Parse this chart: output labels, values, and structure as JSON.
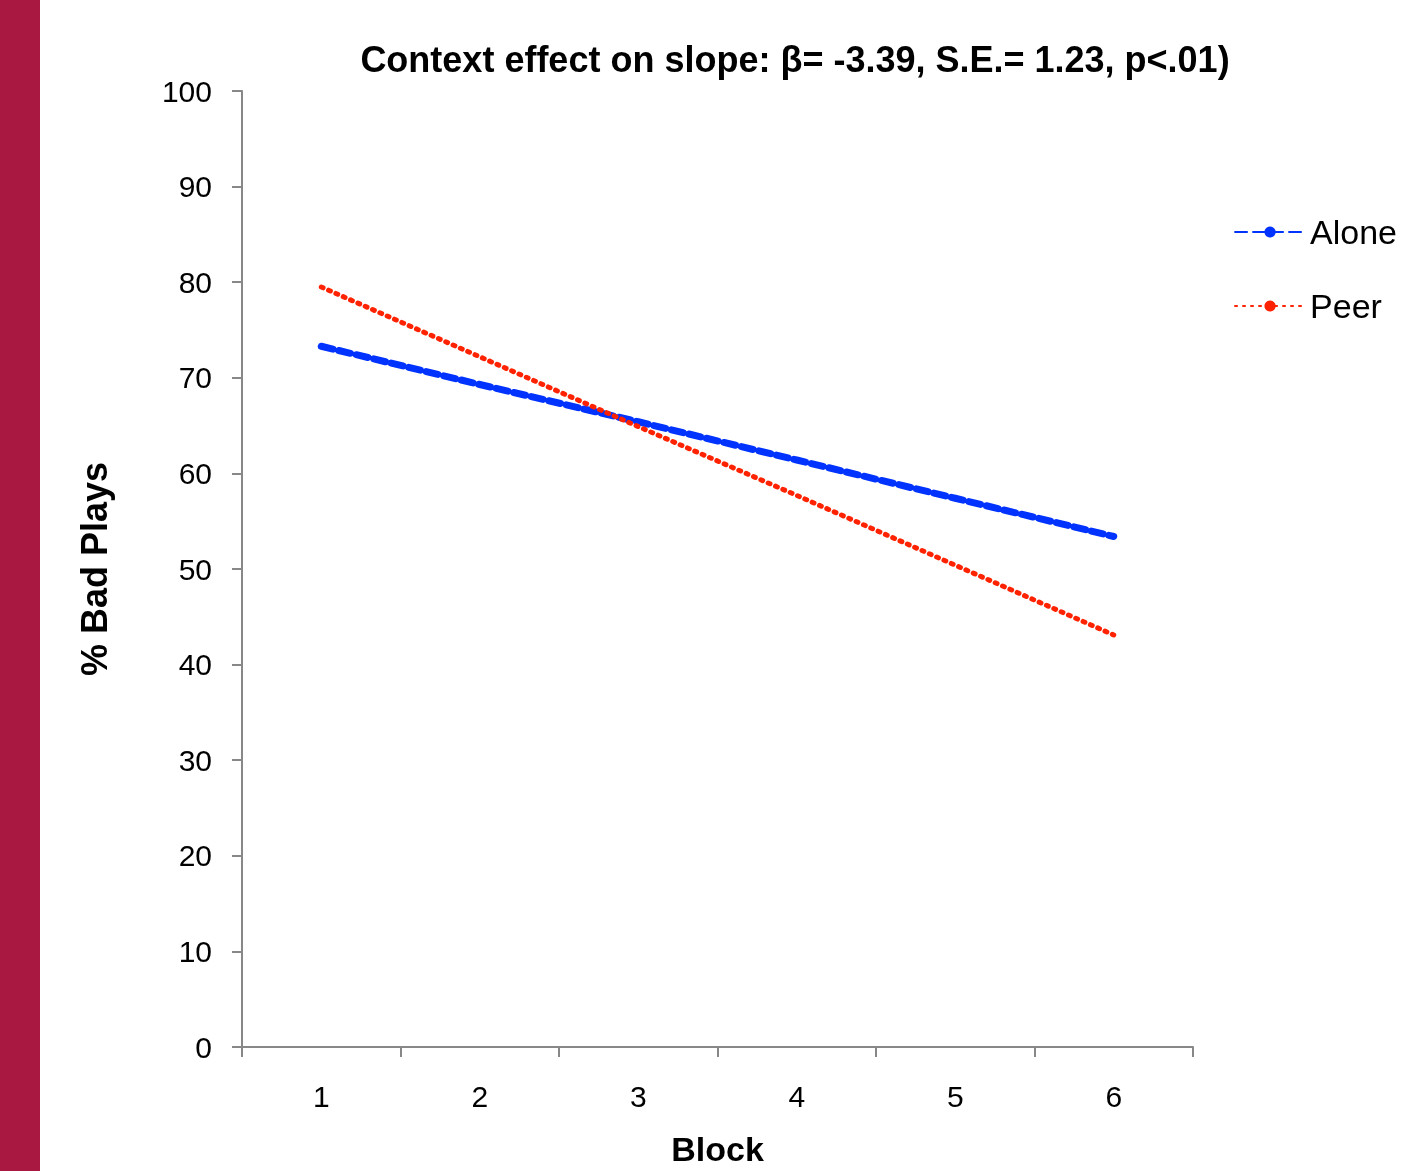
{
  "chart_data": {
    "type": "line",
    "title": "Context effect on slope: β= -3.39, S.E.= 1.23, p<.01)",
    "xlabel": "Block",
    "ylabel": "% Bad Plays",
    "categories": [
      "1",
      "2",
      "3",
      "4",
      "5",
      "6"
    ],
    "series": [
      {
        "name": "Alone",
        "color": "#0033ff",
        "line_style": "dashed",
        "values": [
          73.3,
          69.3,
          65.4,
          61.4,
          57.4,
          53.4
        ]
      },
      {
        "name": "Peer",
        "color": "#ff2200",
        "line_style": "dotted",
        "values": [
          79.5,
          72.2,
          64.9,
          57.7,
          50.4,
          43.1
        ]
      }
    ],
    "ylim": [
      0,
      100
    ],
    "yticks": [
      0,
      10,
      20,
      30,
      40,
      50,
      60,
      70,
      80,
      90,
      100
    ],
    "grid": false,
    "legend": "right",
    "marker": "none"
  }
}
